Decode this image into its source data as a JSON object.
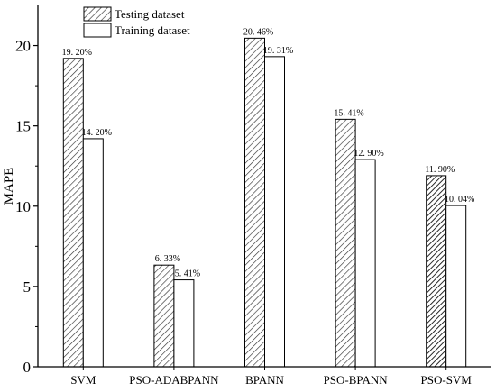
{
  "chart_data": {
    "type": "bar",
    "categories": [
      "SVM",
      "PSO-ADABPANN",
      "BPANN",
      "PSO-BPANN",
      "PSO-SVM"
    ],
    "series": [
      {
        "name": "Testing  dataset",
        "values": [
          19.2,
          6.33,
          20.46,
          15.41,
          11.9
        ],
        "labels": [
          "19. 20%",
          "6. 33%",
          "20. 46%",
          "15. 41%",
          "11. 90%"
        ],
        "fill": "hatched"
      },
      {
        "name": "Training dataset",
        "values": [
          14.2,
          5.41,
          19.31,
          12.9,
          10.04
        ],
        "labels": [
          "14. 20%",
          "5. 41%",
          "19. 31%",
          "12. 90%",
          "10. 04%"
        ],
        "fill": "#ffffff"
      }
    ],
    "title": "",
    "xlabel": "",
    "ylabel": "MAPE",
    "ylim": [
      0,
      22.5
    ],
    "yticks": [
      0,
      5,
      10,
      15,
      20
    ],
    "ytick_labels": [
      "0",
      "5",
      "10",
      "15",
      "20"
    ],
    "grid": false,
    "legend_position": "top-left"
  }
}
